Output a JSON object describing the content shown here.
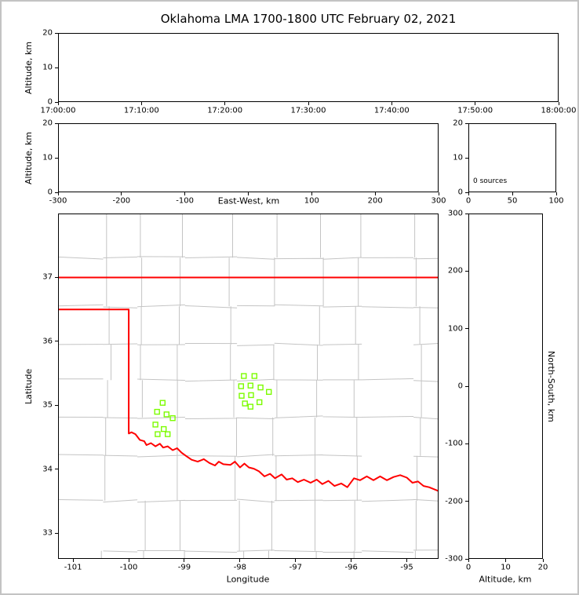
{
  "figure_title": "Oklahoma LMA 1700-1800 UTC February 02, 2021",
  "colors": {
    "state_border": "#ff0000",
    "county_line": "#c4c4c4",
    "station_marker": "#7cfc00",
    "axis": "#000000",
    "background": "#ffffff"
  },
  "chart_data": [
    {
      "id": "time_height",
      "type": "scatter",
      "xlabel": "",
      "ylabel": "Altitude, km",
      "xlim": [
        0,
        3600
      ],
      "ylim": [
        0,
        20
      ],
      "xticks": [
        {
          "v": 0,
          "label": "17:00:00"
        },
        {
          "v": 600,
          "label": "17:10:00"
        },
        {
          "v": 1200,
          "label": "17:20:00"
        },
        {
          "v": 1800,
          "label": "17:30:00"
        },
        {
          "v": 2400,
          "label": "17:40:00"
        },
        {
          "v": 3000,
          "label": "17:50:00"
        },
        {
          "v": 3600,
          "label": "18:00:00"
        }
      ],
      "yticks": [
        {
          "v": 0,
          "label": "0"
        },
        {
          "v": 10,
          "label": "10"
        },
        {
          "v": 20,
          "label": "20"
        }
      ],
      "points": []
    },
    {
      "id": "ew_height",
      "type": "scatter",
      "xlabel": "East-West, km",
      "ylabel": "Altitude, km",
      "xlim": [
        -300,
        300
      ],
      "ylim": [
        0,
        20
      ],
      "xticks": [
        {
          "v": -300,
          "label": "-300"
        },
        {
          "v": -200,
          "label": "-200"
        },
        {
          "v": -100,
          "label": "-100"
        },
        {
          "v": 0,
          "label": ""
        },
        {
          "v": 100,
          "label": "100"
        },
        {
          "v": 200,
          "label": "200"
        },
        {
          "v": 300,
          "label": "300"
        }
      ],
      "yticks": [
        {
          "v": 0,
          "label": "0"
        },
        {
          "v": 10,
          "label": "10"
        },
        {
          "v": 20,
          "label": "20"
        }
      ],
      "points": []
    },
    {
      "id": "source_histogram",
      "type": "line",
      "xlabel": "",
      "ylabel": "",
      "annotation": "0 sources",
      "xlim": [
        0,
        100
      ],
      "ylim": [
        0,
        20
      ],
      "xticks": [
        {
          "v": 0,
          "label": "0"
        },
        {
          "v": 50,
          "label": "50"
        },
        {
          "v": 100,
          "label": "100"
        }
      ],
      "yticks": [
        {
          "v": 0,
          "label": "0"
        },
        {
          "v": 10,
          "label": "10"
        },
        {
          "v": 20,
          "label": "20"
        }
      ],
      "values": []
    },
    {
      "id": "plan_view",
      "type": "scatter",
      "xlabel": "Longitude",
      "ylabel": "Latitude",
      "xlim": [
        -101.27,
        -94.43
      ],
      "ylim": [
        32.6,
        38.0
      ],
      "xticks": [
        {
          "v": -101,
          "label": "-101"
        },
        {
          "v": -100,
          "label": "-100"
        },
        {
          "v": -99,
          "label": "-99"
        },
        {
          "v": -98,
          "label": "-98"
        },
        {
          "v": -97,
          "label": "-97"
        },
        {
          "v": -96,
          "label": "-96"
        },
        {
          "v": -95,
          "label": "-95"
        }
      ],
      "yticks": [
        {
          "v": 33,
          "label": "33"
        },
        {
          "v": 34,
          "label": "34"
        },
        {
          "v": 35,
          "label": "35"
        },
        {
          "v": 36,
          "label": "36"
        },
        {
          "v": 37,
          "label": "37"
        }
      ],
      "series": [
        {
          "name": "lma_stations",
          "marker": "open-square",
          "color": "#7cfc00",
          "points": [
            [
              -97.93,
              35.46
            ],
            [
              -97.74,
              35.46
            ],
            [
              -97.98,
              35.3
            ],
            [
              -97.81,
              35.31
            ],
            [
              -97.63,
              35.28
            ],
            [
              -97.97,
              35.15
            ],
            [
              -97.8,
              35.16
            ],
            [
              -97.48,
              35.21
            ],
            [
              -97.91,
              35.03
            ],
            [
              -97.65,
              35.05
            ],
            [
              -97.81,
              34.98
            ],
            [
              -99.39,
              35.04
            ],
            [
              -99.49,
              34.9
            ],
            [
              -99.32,
              34.86
            ],
            [
              -99.21,
              34.8
            ],
            [
              -99.52,
              34.7
            ],
            [
              -99.37,
              34.63
            ],
            [
              -99.48,
              34.55
            ],
            [
              -99.3,
              34.55
            ]
          ]
        }
      ]
    },
    {
      "id": "ns_height",
      "type": "scatter",
      "xlabel": "Altitude, km",
      "ylabel": "North-South, km",
      "xlim": [
        0,
        20
      ],
      "ylim": [
        -300,
        300
      ],
      "xticks": [
        {
          "v": 0,
          "label": "0"
        },
        {
          "v": 10,
          "label": "10"
        },
        {
          "v": 20,
          "label": "20"
        }
      ],
      "yticks": [
        {
          "v": 300,
          "label": "300"
        },
        {
          "v": 200,
          "label": "200"
        },
        {
          "v": 100,
          "label": "100"
        },
        {
          "v": 0,
          "label": "0"
        },
        {
          "v": -100,
          "label": "-100"
        },
        {
          "v": -200,
          "label": "-200"
        },
        {
          "v": -300,
          "label": "-300"
        }
      ],
      "points": []
    }
  ],
  "map_overlay": {
    "state_border_color": "#ff0000",
    "segments": [
      {
        "name": "oklahoma-north-border",
        "points": [
          [
            -101.27,
            37.0
          ],
          [
            -94.43,
            37.0
          ]
        ]
      },
      {
        "name": "oklahoma-panhandle-west-and-red-river",
        "points": [
          [
            -101.27,
            36.5
          ],
          [
            -100.0,
            36.5
          ],
          [
            -100.0,
            34.56
          ],
          [
            -99.95,
            34.58
          ],
          [
            -99.88,
            34.55
          ],
          [
            -99.8,
            34.46
          ],
          [
            -99.72,
            34.44
          ],
          [
            -99.68,
            34.38
          ],
          [
            -99.6,
            34.41
          ],
          [
            -99.52,
            34.36
          ],
          [
            -99.44,
            34.4
          ],
          [
            -99.38,
            34.34
          ],
          [
            -99.3,
            34.36
          ],
          [
            -99.21,
            34.3
          ],
          [
            -99.13,
            34.33
          ],
          [
            -99.05,
            34.26
          ],
          [
            -98.97,
            34.21
          ],
          [
            -98.87,
            34.15
          ],
          [
            -98.76,
            34.12
          ],
          [
            -98.65,
            34.16
          ],
          [
            -98.55,
            34.1
          ],
          [
            -98.45,
            34.06
          ],
          [
            -98.38,
            34.12
          ],
          [
            -98.3,
            34.08
          ],
          [
            -98.17,
            34.07
          ],
          [
            -98.09,
            34.12
          ],
          [
            -98.0,
            34.03
          ],
          [
            -97.92,
            34.09
          ],
          [
            -97.84,
            34.03
          ],
          [
            -97.75,
            34.01
          ],
          [
            -97.66,
            33.97
          ],
          [
            -97.56,
            33.89
          ],
          [
            -97.46,
            33.93
          ],
          [
            -97.37,
            33.86
          ],
          [
            -97.25,
            33.92
          ],
          [
            -97.16,
            33.84
          ],
          [
            -97.06,
            33.86
          ],
          [
            -96.96,
            33.8
          ],
          [
            -96.85,
            33.84
          ],
          [
            -96.73,
            33.79
          ],
          [
            -96.62,
            33.84
          ],
          [
            -96.52,
            33.77
          ],
          [
            -96.41,
            33.82
          ],
          [
            -96.3,
            33.74
          ],
          [
            -96.18,
            33.78
          ],
          [
            -96.07,
            33.72
          ],
          [
            -95.95,
            33.86
          ],
          [
            -95.84,
            33.83
          ],
          [
            -95.72,
            33.89
          ],
          [
            -95.6,
            33.83
          ],
          [
            -95.48,
            33.89
          ],
          [
            -95.36,
            33.83
          ],
          [
            -95.24,
            33.88
          ],
          [
            -95.12,
            33.91
          ],
          [
            -95.0,
            33.87
          ],
          [
            -94.9,
            33.79
          ],
          [
            -94.8,
            33.81
          ],
          [
            -94.7,
            33.74
          ],
          [
            -94.6,
            33.72
          ],
          [
            -94.43,
            33.66
          ]
        ]
      }
    ]
  }
}
